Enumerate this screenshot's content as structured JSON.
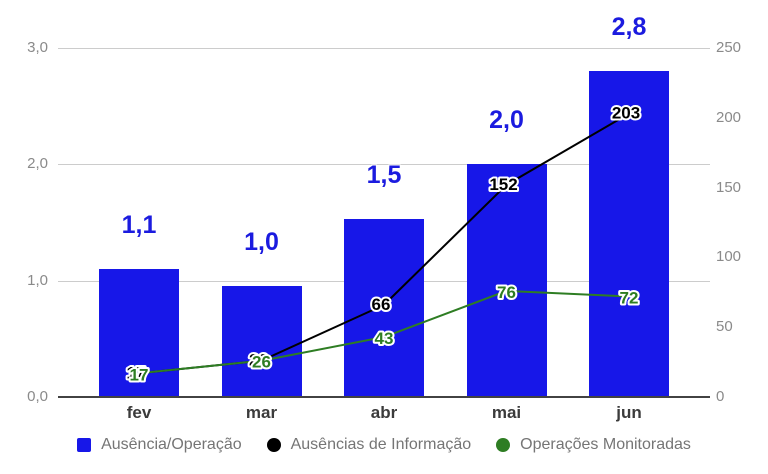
{
  "chart_data": {
    "type": "combo-bar-line",
    "title": "",
    "categories": [
      "fev",
      "mar",
      "abr",
      "mai",
      "jun"
    ],
    "bar_series": {
      "name": "Ausência/Operação",
      "axis": "left",
      "color": "#1717e8",
      "label_color": "#1b1bdf",
      "values": [
        1.1,
        0.95,
        1.53,
        2.0,
        2.8
      ],
      "value_labels": [
        "1,1",
        "1,0",
        "1,5",
        "2,0",
        "2,8"
      ]
    },
    "line_series": [
      {
        "name": "Ausências de Informação",
        "axis": "right",
        "color": "#000000",
        "marker": "circle",
        "values": [
          17,
          26,
          66,
          152,
          203
        ],
        "value_labels": [
          "17",
          "26",
          "66",
          "152",
          "203"
        ],
        "label_dx": -3,
        "label_dy": -1
      },
      {
        "name": "Operações Monitoradas",
        "axis": "right",
        "color": "#2e7d23",
        "marker": "circle",
        "values": [
          17,
          26,
          43,
          76,
          72
        ],
        "value_labels": [
          "17",
          "26",
          "43",
          "76",
          "72"
        ],
        "label_dx": 0,
        "label_dy": 1
      }
    ],
    "left_axis": {
      "tick_labels": [
        "3,0",
        "2,0",
        "1,0",
        "0,0"
      ],
      "tick_values": [
        3,
        2,
        1,
        0
      ],
      "min": 0,
      "max": 3
    },
    "right_axis": {
      "tick_labels": [
        "250",
        "200",
        "150",
        "100",
        "50",
        "0"
      ],
      "tick_values": [
        250,
        200,
        150,
        100,
        50,
        0
      ],
      "min": 0,
      "max": 250
    },
    "grid": "horizontal",
    "legend_position": "bottom"
  },
  "styles": {
    "background": "#ffffff",
    "grid_color": "#cccccc",
    "baseline_color": "#424242",
    "axis_text_color": "#8a8a8a",
    "x_label_color": "#3b3b3b",
    "legend_text_color": "#757575"
  }
}
